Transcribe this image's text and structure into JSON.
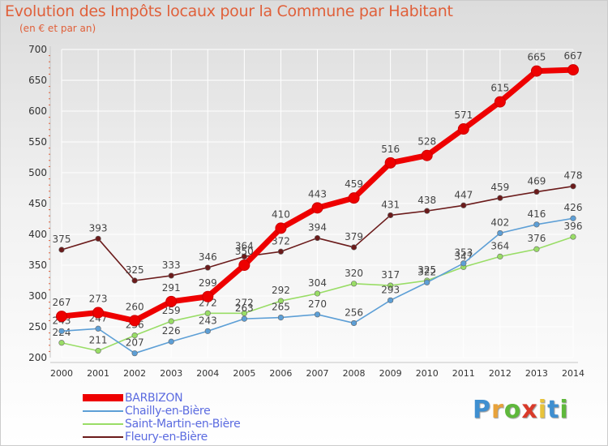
{
  "title": "Evolution des Impôts locaux pour la Commune par Habitant",
  "subtitle": "(en € et par an)",
  "logo": {
    "p": "P",
    "r": "r",
    "o": "o",
    "x": "x",
    "i1": "i",
    "t": "t",
    "i2": "i"
  },
  "chart_data": {
    "type": "line",
    "title": "Evolution des Impôts locaux pour la Commune par Habitant",
    "ylabel": "(en € et par an)",
    "xlabel": "",
    "ylim": [
      200,
      700
    ],
    "yticks": [
      200,
      250,
      300,
      350,
      400,
      450,
      500,
      550,
      600,
      650,
      700
    ],
    "categories": [
      "2000",
      "2001",
      "2002",
      "2003",
      "2004",
      "2005",
      "2006",
      "2007",
      "2008",
      "2009",
      "2010",
      "2011",
      "2012",
      "2013",
      "2014"
    ],
    "series": [
      {
        "name": "Fleury-en-Bière",
        "color": "#6b1b1b",
        "values": [
          375,
          393,
          325,
          333,
          346,
          364,
          372,
          394,
          379,
          431,
          438,
          447,
          459,
          469,
          478
        ]
      },
      {
        "name": "Saint-Martin-en-Bière",
        "color": "#99dd66",
        "values": [
          224,
          211,
          236,
          259,
          272,
          272,
          292,
          304,
          320,
          317,
          325,
          347,
          364,
          376,
          396
        ]
      },
      {
        "name": "Chailly-en-Bière",
        "color": "#5d9fd6",
        "values": [
          243,
          247,
          207,
          226,
          243,
          263,
          265,
          270,
          256,
          293,
          322,
          353,
          402,
          416,
          426
        ]
      },
      {
        "name": "BARBIZON",
        "color": "#ee0000",
        "values": [
          267,
          273,
          260,
          291,
          299,
          350,
          410,
          443,
          459,
          516,
          528,
          571,
          615,
          665,
          667
        ]
      }
    ],
    "legend": [
      "BARBIZON",
      "Chailly-en-Bière",
      "Saint-Martin-en-Bière",
      "Fleury-en-Bière"
    ]
  }
}
